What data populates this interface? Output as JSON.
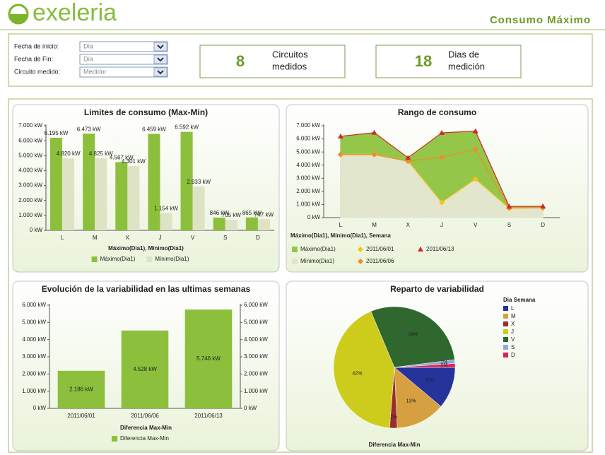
{
  "header": {
    "logo": "exeleria",
    "title": "Consumo Máximo"
  },
  "filters": [
    {
      "label": "Fecha de inicio:",
      "value": "Día"
    },
    {
      "label": "Fecha de Fin:",
      "value": "Día"
    },
    {
      "label": "Circuito medido:",
      "value": "Medidor"
    }
  ],
  "kpis": [
    {
      "value": 8,
      "label_lines": [
        "Circuitos",
        "medidos"
      ]
    },
    {
      "value": 18,
      "label_lines": [
        "Dias de",
        "medición"
      ]
    }
  ],
  "chart_data": [
    {
      "type": "bar",
      "title": "Limites de consumo (Max-Min)",
      "categories": [
        "L",
        "M",
        "X",
        "J",
        "V",
        "S",
        "D"
      ],
      "series": [
        {
          "name": "Máximo(Dia1)",
          "color": "#8cc03c",
          "values": [
            6195,
            6473,
            4567,
            6459,
            6592,
            846,
            865
          ],
          "value_labels": [
            "6.195 kW",
            "6.473 kW",
            "4.567 kW",
            "6.459 kW",
            "6.592 kW",
            "846 kW",
            "865 kW"
          ]
        },
        {
          "name": "Mínimo(Dia1)",
          "color": "#dfe3c6",
          "values": [
            4820,
            4825,
            4301,
            1154,
            2933,
            705,
            747
          ],
          "value_labels": [
            "4.820 kW",
            "4.825 kW",
            "4.301 kW",
            "1.154 kW",
            "2.933 kW",
            "705 kW",
            "747 kW"
          ]
        }
      ],
      "value_label_position": "above",
      "ylim": [
        0,
        7000
      ],
      "yticks": [
        {
          "value": 0,
          "label": "0 kW"
        },
        {
          "value": 1000,
          "label": "1.000 kW"
        },
        {
          "value": 2000,
          "label": "2.000 kW"
        },
        {
          "value": 3000,
          "label": "3.000 kW"
        },
        {
          "value": 4000,
          "label": "4.000 kW"
        },
        {
          "value": 5000,
          "label": "5.000 kW"
        },
        {
          "value": 6000,
          "label": "6.000 kW"
        },
        {
          "value": 7000,
          "label": "7.000 kW"
        }
      ],
      "xlabel": "Máximo(Dia1), Mínimo(Dia1)",
      "legend": "bottom"
    },
    {
      "type": "area",
      "title": "Rango de consumo",
      "categories": [
        "L",
        "M",
        "X",
        "J",
        "V",
        "S",
        "D"
      ],
      "series": [
        {
          "name": "Máximo(Dia1)",
          "kind": "area",
          "color": "#94c64a",
          "values": [
            6195,
            6473,
            4567,
            6459,
            6592,
            846,
            865
          ]
        },
        {
          "name": "Mínimo(Dia1)",
          "kind": "area",
          "color": "#e2e6cc",
          "values": [
            4820,
            4825,
            4301,
            1154,
            2933,
            705,
            747
          ]
        },
        {
          "name": "2011/06/01",
          "kind": "line",
          "marker": "diamond",
          "color": "#f5c518",
          "values": [
            4820,
            4825,
            4301,
            1154,
            2933,
            705,
            747
          ]
        },
        {
          "name": "2011/06/06",
          "kind": "line",
          "marker": "diamond",
          "color": "#f08c28",
          "values": [
            4800,
            4800,
            4300,
            4600,
            5200,
            750,
            750
          ]
        },
        {
          "name": "2011/06/13",
          "kind": "line",
          "marker": "triangle",
          "color": "#cc2a2a",
          "values": [
            6195,
            6473,
            4567,
            6459,
            6592,
            846,
            865
          ]
        }
      ],
      "ylim": [
        0,
        7000
      ],
      "yticks": [
        {
          "value": 0,
          "label": "0 kW"
        },
        {
          "value": 1000,
          "label": "1.000 kW"
        },
        {
          "value": 2000,
          "label": "2.000 kW"
        },
        {
          "value": 3000,
          "label": "3.000 kW"
        },
        {
          "value": 4000,
          "label": "4.000 kW"
        },
        {
          "value": 5000,
          "label": "5.000 kW"
        },
        {
          "value": 6000,
          "label": "6.000 kW"
        },
        {
          "value": 7000,
          "label": "7.000 kW"
        }
      ],
      "legend_title": "Máximo(Dia1), Mínimo(Dia1), Semana",
      "legend": "bottom"
    },
    {
      "type": "bar",
      "title": "Evolución de la variabilidad en las ultimas semanas",
      "categories": [
        "2011/06/01",
        "2011/06/06",
        "2011/06/13"
      ],
      "series": [
        {
          "name": "Diferencia Max-Min",
          "color": "#8cc03c",
          "values": [
            2186,
            4528,
            5746
          ],
          "value_labels": [
            "2.186 kW",
            "4.528 kW",
            "5.746 kW"
          ]
        }
      ],
      "value_label_position": "inside",
      "ylim": [
        0,
        6000
      ],
      "yticks": [
        {
          "value": 0,
          "label": "0 kW"
        },
        {
          "value": 1000,
          "label": "1.000 kW"
        },
        {
          "value": 2000,
          "label": "2.000 kW"
        },
        {
          "value": 3000,
          "label": "3.000 kW"
        },
        {
          "value": 4000,
          "label": "4.000 kW"
        },
        {
          "value": 5000,
          "label": "5.000 kW"
        },
        {
          "value": 6000,
          "label": "6.000 kW"
        }
      ],
      "y2lim": [
        0,
        6000
      ],
      "y2ticks": [
        {
          "value": 0,
          "label": "0 kW"
        },
        {
          "value": 1000,
          "label": "1.000 kW"
        },
        {
          "value": 2000,
          "label": "2.000 kW"
        },
        {
          "value": 3000,
          "label": "3.000 kW"
        },
        {
          "value": 4000,
          "label": "4.000 kW"
        },
        {
          "value": 5000,
          "label": "5.000 kW"
        },
        {
          "value": 6000,
          "label": "6.000 kW"
        }
      ],
      "xlabel": "Diferencia Max-Min",
      "legend": "bottom"
    },
    {
      "type": "pie",
      "title": "Reparto de variabilidad",
      "categories": [
        "L",
        "M",
        "X",
        "J",
        "V",
        "S",
        "D"
      ],
      "values": [
        11,
        13,
        2,
        42,
        29,
        1,
        1
      ],
      "value_labels": [
        "11%",
        "13%",
        "2%",
        "42%",
        "29%",
        "1%",
        "1%"
      ],
      "colors": [
        "#25339a",
        "#d6a040",
        "#9a2e2e",
        "#cdcc1c",
        "#2f672f",
        "#8fa9d9",
        "#e2204c"
      ],
      "legend_title": "Dia Semana",
      "legend": "right",
      "xlabel": "Diferencia Max-Min"
    }
  ]
}
